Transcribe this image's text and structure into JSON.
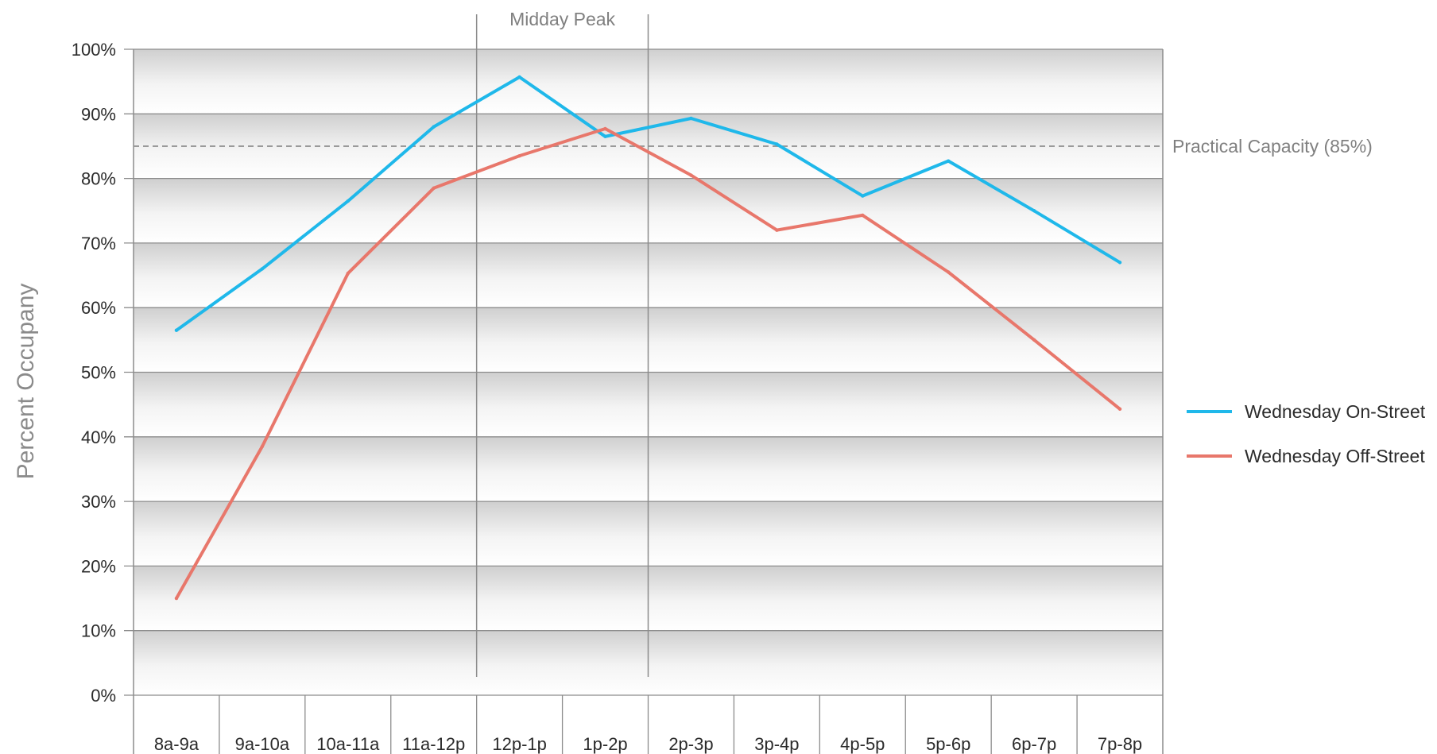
{
  "chart_data": {
    "type": "line",
    "title": "",
    "xlabel": "",
    "ylabel": "Percent Occupany",
    "ylim": [
      0,
      100
    ],
    "yticks": [
      "0%",
      "10%",
      "20%",
      "30%",
      "40%",
      "50%",
      "60%",
      "70%",
      "80%",
      "90%",
      "100%"
    ],
    "categories": [
      "8a-9a",
      "9a-10a",
      "10a-11a",
      "11a-12p",
      "12p-1p",
      "1p-2p",
      "2p-3p",
      "3p-4p",
      "4p-5p",
      "5p-6p",
      "6p-7p",
      "7p-8p"
    ],
    "series": [
      {
        "name": "Wednesday On-Street",
        "color": "#1fb8ea",
        "values": [
          56.5,
          66,
          76.5,
          88,
          95.7,
          86.5,
          89.3,
          85.3,
          77.3,
          82.7,
          75,
          67
        ]
      },
      {
        "name": "Wednesday Off-Street",
        "color": "#e8776b",
        "values": [
          15,
          38.5,
          65.3,
          78.5,
          83.5,
          87.7,
          80.5,
          72,
          74.3,
          65.5,
          55,
          44.3
        ]
      }
    ],
    "reference_line": {
      "label": "Practical Capacity (85%)",
      "value": 85,
      "style": "dashed"
    },
    "highlight": {
      "label": "Midday Peak",
      "from_category": "12p-1p",
      "to_category": "1p-2p"
    },
    "legend": {
      "position": "right"
    },
    "grid": true
  }
}
